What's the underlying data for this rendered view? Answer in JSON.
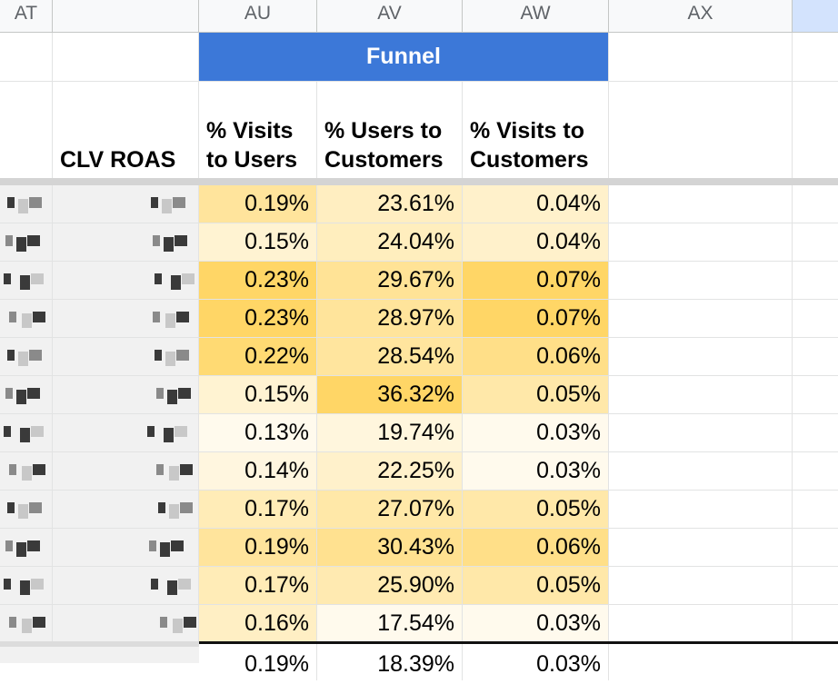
{
  "columns": [
    {
      "letter": "AT"
    },
    {
      "letter": "AU"
    },
    {
      "letter": "AV"
    },
    {
      "letter": "AW"
    },
    {
      "letter": "AX"
    }
  ],
  "group_header": "Funnel",
  "headers": {
    "clv_roas": "CLV ROAS",
    "visits_to_users_l1": "% Visits",
    "visits_to_users_l2": "to Users",
    "users_to_customers_l1": "% Users to",
    "users_to_customers_l2": "Customers",
    "visits_to_customers_l1": "% Visits to",
    "visits_to_customers_l2": "Customers"
  },
  "rows": [
    {
      "au": "0.19%",
      "av": "23.61%",
      "aw": "0.04%"
    },
    {
      "au": "0.15%",
      "av": "24.04%",
      "aw": "0.04%"
    },
    {
      "au": "0.23%",
      "av": "29.67%",
      "aw": "0.07%"
    },
    {
      "au": "0.23%",
      "av": "28.97%",
      "aw": "0.07%"
    },
    {
      "au": "0.22%",
      "av": "28.54%",
      "aw": "0.06%"
    },
    {
      "au": "0.15%",
      "av": "36.32%",
      "aw": "0.05%"
    },
    {
      "au": "0.13%",
      "av": "19.74%",
      "aw": "0.03%"
    },
    {
      "au": "0.14%",
      "av": "22.25%",
      "aw": "0.03%"
    },
    {
      "au": "0.17%",
      "av": "27.07%",
      "aw": "0.05%"
    },
    {
      "au": "0.19%",
      "av": "30.43%",
      "aw": "0.06%"
    },
    {
      "au": "0.17%",
      "av": "25.90%",
      "aw": "0.05%"
    },
    {
      "au": "0.16%",
      "av": "17.54%",
      "aw": "0.03%"
    }
  ],
  "total_row": {
    "au": "0.19%",
    "av": "18.39%",
    "aw": "0.03%"
  },
  "colors": {
    "funnel_header": "#3c78d8",
    "heat_low": "#ffffff",
    "heat_high": "#ffd666",
    "selected_column_header": "#d3e3fd"
  }
}
